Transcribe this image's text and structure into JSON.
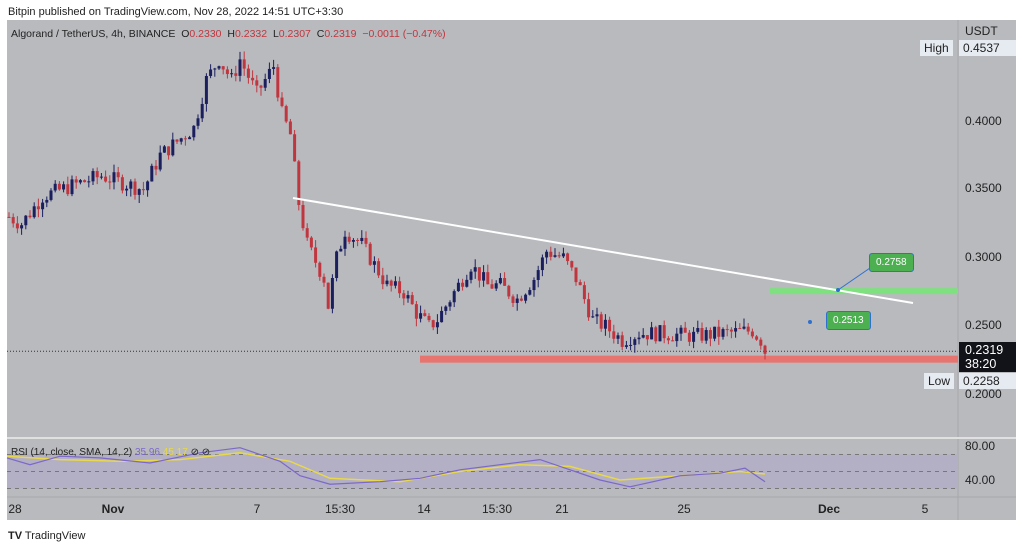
{
  "header": {
    "published": "Bitpin published on TradingView.com, Nov 28, 2022 14:51 UTC+3:30"
  },
  "legend": {
    "symbol": "Algorand / TetherUS, 4h, BINANCE",
    "o_label": "O",
    "o": "0.2330",
    "h_label": "H",
    "h": "0.2332",
    "l_label": "L",
    "l": "0.2307",
    "c_label": "C",
    "c": "0.2319",
    "change": "−0.0011 (−0.47%)"
  },
  "price_axis": {
    "currency": "USDT",
    "ticks": [
      "0.4000",
      "0.3500",
      "0.3000",
      "0.2500",
      "0.2000"
    ],
    "high_label": "High",
    "high": "0.4537",
    "low_label": "Low",
    "low": "0.2258",
    "last": "0.2319",
    "countdown": "38:20"
  },
  "annotations": {
    "target": "0.2758",
    "mid": "0.2513"
  },
  "rsi": {
    "label": "RSI (14, close, SMA, 14, 2)",
    "rsi": "35.96",
    "sma": "45.17",
    "ticks": [
      "80.00",
      "40.00"
    ]
  },
  "time_axis": [
    "28",
    "Nov",
    "7",
    "15:30",
    "14",
    "15:30",
    "21",
    "25",
    "Dec",
    "5"
  ],
  "footer": {
    "brand": "TradingView"
  },
  "colors": {
    "up": "#1b1f5e",
    "down": "#c0363f",
    "bg": "#b8babe",
    "rsi": "#7b68c8",
    "sma": "#e8d84a",
    "support": "#e8746f",
    "resistance": "#7ee07e"
  },
  "chart_data": {
    "type": "candlestick",
    "title": "Algorand / TetherUS, 4h, BINANCE",
    "ylabel": "USDT",
    "ylim": [
      0.19,
      0.46
    ],
    "waypoints_candle_index": [
      0,
      3,
      8,
      17,
      22,
      32,
      36,
      44,
      47,
      50,
      53,
      55,
      59,
      63,
      65,
      67,
      69,
      71,
      75,
      76,
      78,
      80,
      84,
      88,
      90,
      94,
      97,
      100,
      102,
      105,
      110,
      114,
      117,
      121,
      125,
      128,
      132,
      135,
      139,
      142,
      146,
      150,
      155,
      163,
      170,
      177,
      179,
      180
    ],
    "waypoints_close": [
      0.33,
      0.325,
      0.345,
      0.355,
      0.36,
      0.35,
      0.375,
      0.395,
      0.43,
      0.445,
      0.43,
      0.445,
      0.42,
      0.44,
      0.405,
      0.39,
      0.34,
      0.31,
      0.285,
      0.265,
      0.3,
      0.32,
      0.31,
      0.29,
      0.28,
      0.275,
      0.26,
      0.25,
      0.255,
      0.27,
      0.295,
      0.28,
      0.28,
      0.27,
      0.285,
      0.305,
      0.3,
      0.285,
      0.255,
      0.25,
      0.24,
      0.245,
      0.245,
      0.243,
      0.245,
      0.247,
      0.24,
      0.232
    ],
    "trendline": [
      [
        0.345,
        "Nov 8"
      ],
      [
        0.265,
        "Dec 3"
      ]
    ],
    "support": 0.2258,
    "resistance": 0.2758
  }
}
